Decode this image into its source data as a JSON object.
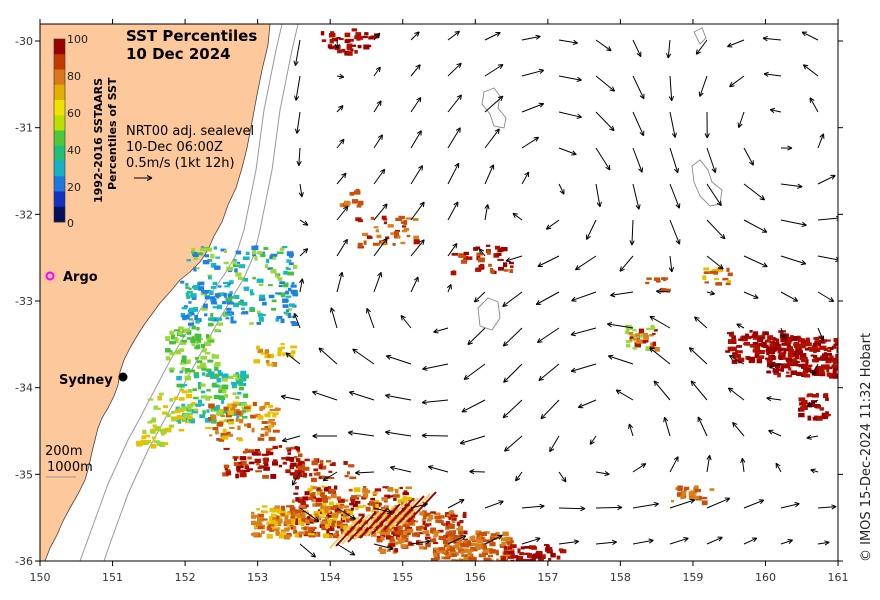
{
  "title": {
    "line1": "SST Percentiles",
    "line2": "10 Dec 2024"
  },
  "colorbar": {
    "title1": "1992-2016 SSTAARS",
    "title2": "Percentiles of SST",
    "ticks": [
      "100",
      "80",
      "60",
      "40",
      "20",
      "0"
    ],
    "colors": [
      "#9b0000",
      "#c23a00",
      "#d8781a",
      "#e0b000",
      "#f0e200",
      "#b8e000",
      "#4cc83a",
      "#1fbf7a",
      "#16b0c8",
      "#1e78e0",
      "#1233c0",
      "#00125e"
    ]
  },
  "current_legend": {
    "line1": "NRT00 adj. sealevel",
    "line2": "10-Dec 06:00Z",
    "line3": "0.5m/s (1kt 12h)"
  },
  "markers": {
    "argo_label": "Argo",
    "argo_color": "#ff00ff",
    "sydney_label": "Sydney"
  },
  "contours": {
    "label_200": "200m",
    "label_1000": "1000m"
  },
  "axes": {
    "x_ticks": [
      "150",
      "151",
      "152",
      "153",
      "154",
      "155",
      "156",
      "157",
      "158",
      "159",
      "160",
      "161"
    ],
    "y_ticks": [
      "-30",
      "-31",
      "-32",
      "-33",
      "-34",
      "-35",
      "-36"
    ]
  },
  "credit": "© IMOS 15-Dec-2024 11:32 Hobart",
  "colors": {
    "land": "#fdc89b",
    "ocean": "#ffffff",
    "arrow": "#000000"
  }
}
